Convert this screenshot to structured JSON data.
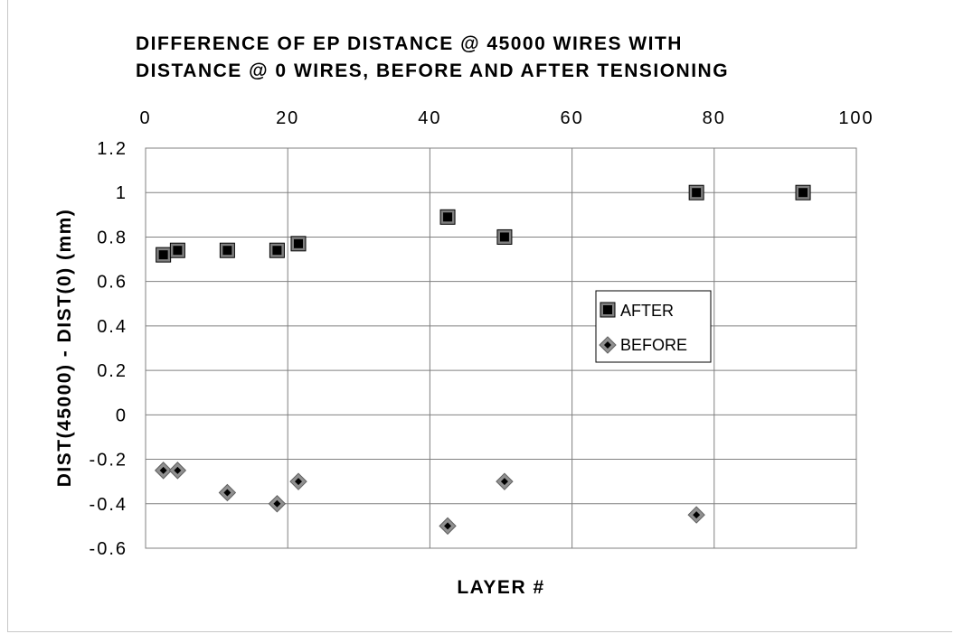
{
  "chart_data": {
    "type": "scatter",
    "title_lines": [
      "DIFFERENCE OF EP DISTANCE @ 45000 WIRES WITH",
      "DISTANCE @ 0 WIRES, BEFORE AND AFTER TENSIONING"
    ],
    "xlabel": "LAYER #",
    "ylabel": "DIST(45000)  -  DIST(0)  (mm)",
    "xlim": [
      0,
      100
    ],
    "ylim": [
      -0.6,
      1.2
    ],
    "x_ticks": [
      "0",
      "20",
      "40",
      "60",
      "80",
      "100"
    ],
    "y_ticks": [
      "1.2",
      "1",
      "0.8",
      "0.6",
      "0.4",
      "0.2",
      "0",
      "-0.2",
      "-0.4",
      "-0.6"
    ],
    "x_axis_position": "top",
    "grid": true,
    "legend_position": "right-center",
    "series": [
      {
        "name": "AFTER",
        "marker": "square",
        "color": "#000000",
        "points": [
          {
            "x": 2.5,
            "y": 0.72
          },
          {
            "x": 4.5,
            "y": 0.74
          },
          {
            "x": 11.5,
            "y": 0.74
          },
          {
            "x": 18.5,
            "y": 0.74
          },
          {
            "x": 21.5,
            "y": 0.77
          },
          {
            "x": 42.5,
            "y": 0.89
          },
          {
            "x": 50.5,
            "y": 0.8
          },
          {
            "x": 77.5,
            "y": 1.0
          },
          {
            "x": 92.5,
            "y": 1.0
          }
        ]
      },
      {
        "name": "BEFORE",
        "marker": "diamond",
        "color": "#000000",
        "points": [
          {
            "x": 2.5,
            "y": -0.25
          },
          {
            "x": 4.5,
            "y": -0.25
          },
          {
            "x": 11.5,
            "y": -0.35
          },
          {
            "x": 18.5,
            "y": -0.4
          },
          {
            "x": 21.5,
            "y": -0.3
          },
          {
            "x": 42.5,
            "y": -0.5
          },
          {
            "x": 50.5,
            "y": -0.3
          },
          {
            "x": 77.5,
            "y": -0.45
          }
        ]
      }
    ]
  }
}
